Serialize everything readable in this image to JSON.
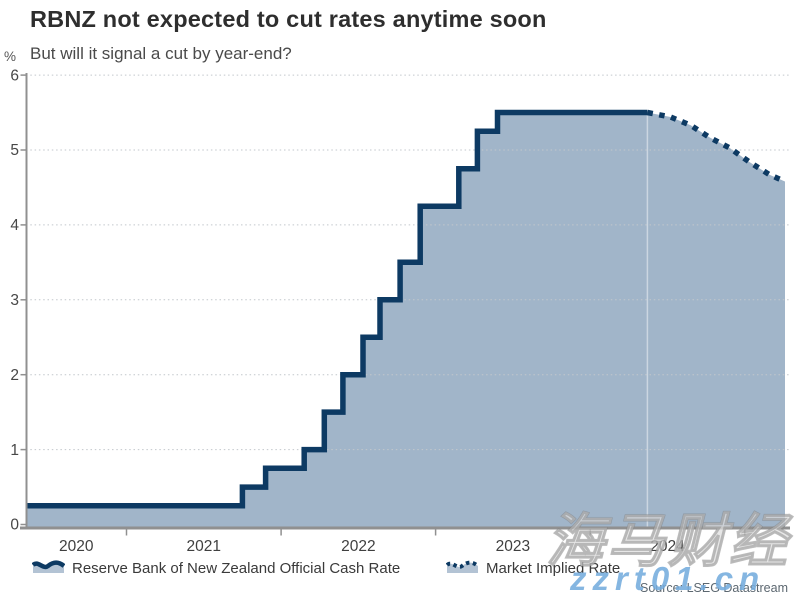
{
  "header": {
    "title": "RBNZ not expected to cut rates anytime soon",
    "subtitle": "But will it signal a cut by year-end?"
  },
  "axes": {
    "unit_label": "%"
  },
  "legend": {
    "items": [
      {
        "label": "Reserve Bank of New Zealand Official Cash Rate",
        "style": "solid"
      },
      {
        "label": "Market Implied Rate",
        "style": "dotted"
      }
    ]
  },
  "source": {
    "text": "Source: LSEG Datastream"
  },
  "watermarks": {
    "cjk": "海马财经",
    "site": "zzrt01.cn"
  },
  "chart_data": {
    "type": "area",
    "title": "RBNZ not expected to cut rates anytime soon",
    "subtitle": "But will it signal a cut by year-end?",
    "xlabel": "",
    "ylabel": "%",
    "ylim": [
      0,
      6
    ],
    "y_ticks": [
      0,
      1,
      2,
      3,
      4,
      5,
      6
    ],
    "x_year_labels": [
      2020,
      2021,
      2022,
      2023,
      2024
    ],
    "x_year_boundaries": [
      2021,
      2022,
      2023,
      2024,
      2025
    ],
    "x_range": [
      2020.35,
      2025.26
    ],
    "grid": "horizontal-dotted",
    "legend_position": "bottom",
    "series": [
      {
        "name": "Reserve Bank of New Zealand Official Cash Rate",
        "style": "solid-step",
        "points": [
          [
            2020.35,
            0.25
          ],
          [
            2021.75,
            0.5
          ],
          [
            2021.9,
            0.75
          ],
          [
            2022.15,
            1.0
          ],
          [
            2022.28,
            1.5
          ],
          [
            2022.4,
            2.0
          ],
          [
            2022.53,
            2.5
          ],
          [
            2022.64,
            3.0
          ],
          [
            2022.77,
            3.5
          ],
          [
            2022.9,
            4.25
          ],
          [
            2023.15,
            4.75
          ],
          [
            2023.27,
            5.25
          ],
          [
            2023.4,
            5.5
          ],
          [
            2024.37,
            5.5
          ]
        ]
      },
      {
        "name": "Market Implied Rate",
        "style": "dotted-line",
        "points": [
          [
            2024.37,
            5.5
          ],
          [
            2024.52,
            5.44
          ],
          [
            2024.65,
            5.33
          ],
          [
            2024.77,
            5.17
          ],
          [
            2024.9,
            5.03
          ],
          [
            2025.03,
            4.84
          ],
          [
            2025.16,
            4.67
          ],
          [
            2025.26,
            4.58
          ]
        ]
      }
    ],
    "colors": {
      "line": "#0d3a63",
      "fill": "#a1b5c9",
      "grid": "#c2c7cc",
      "axis": "#909090",
      "tick_label": "#474747",
      "forecast_divider": "rgba(255,255,255,0.45)"
    }
  }
}
